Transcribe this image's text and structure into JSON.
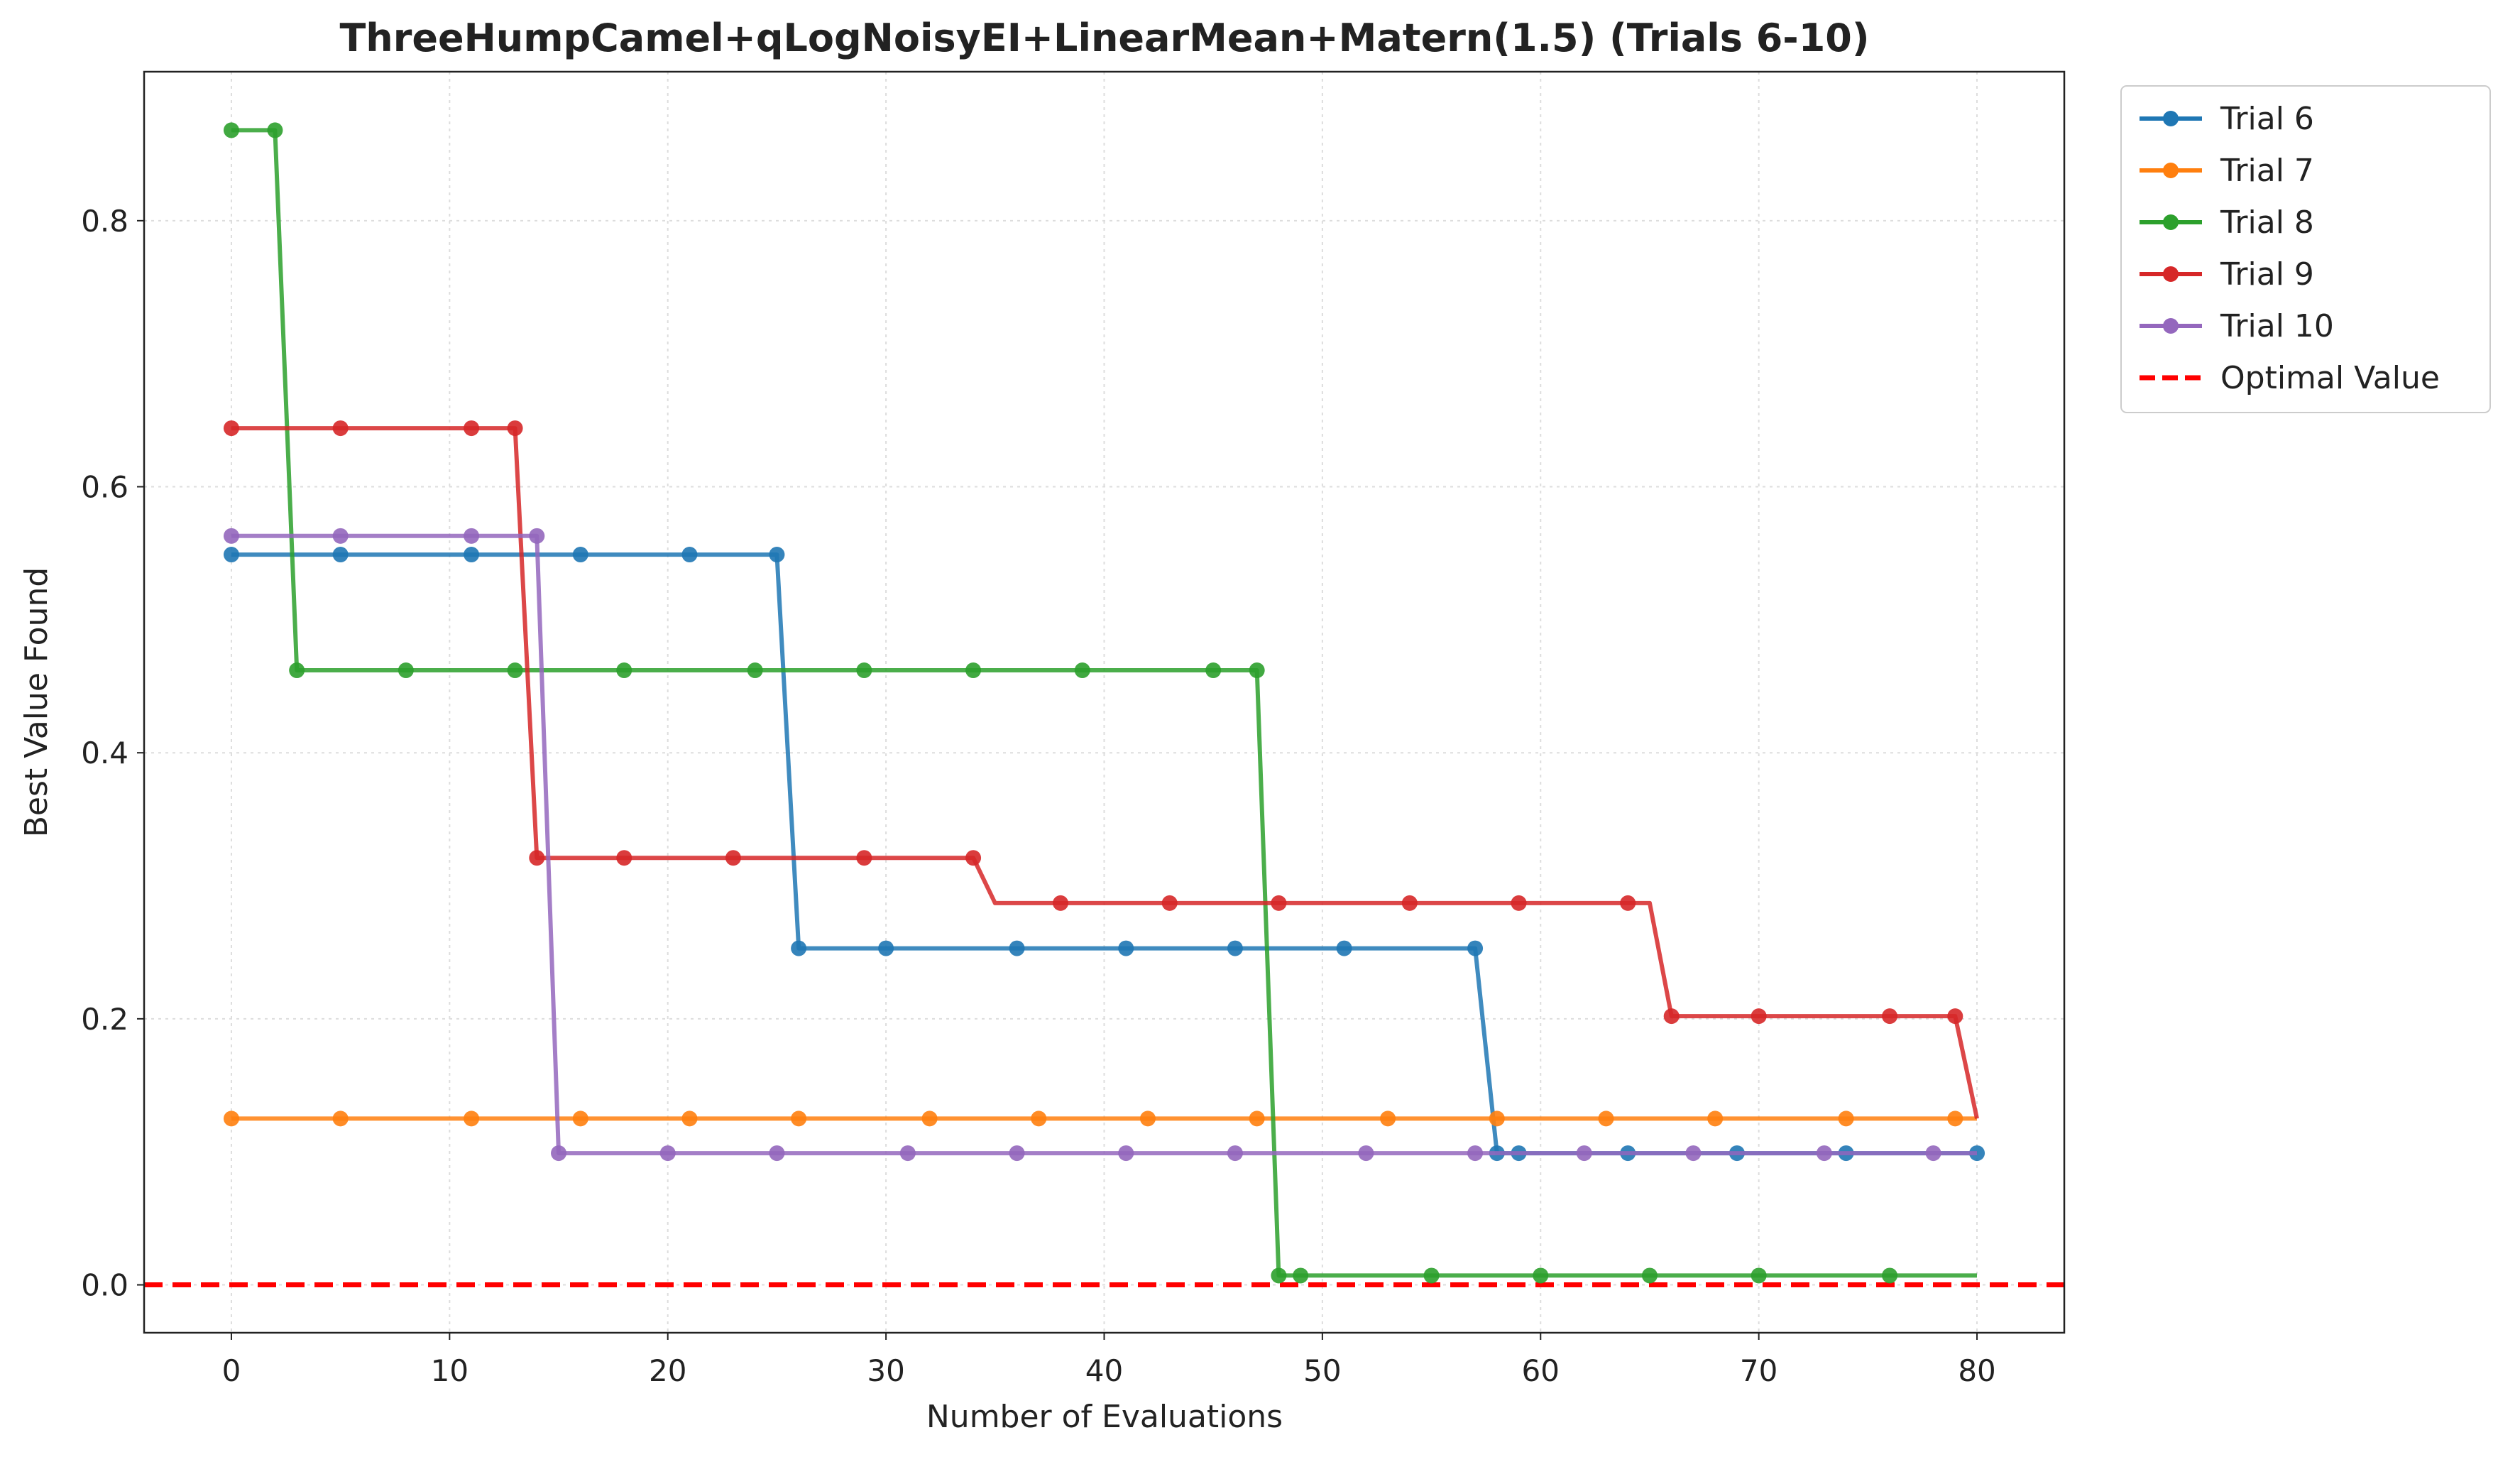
{
  "chart_data": {
    "type": "line",
    "title": "ThreeHumpCamel+qLogNoisyEI+LinearMean+Matern(1.5) (Trials 6-10)",
    "xlabel": "Number of Evaluations",
    "ylabel": "Best Value Found",
    "xlim": [
      -4,
      84
    ],
    "ylim": [
      -0.036,
      0.912
    ],
    "xticks": [
      0,
      10,
      20,
      30,
      40,
      50,
      60,
      70,
      80
    ],
    "yticks": [
      0.0,
      0.2,
      0.4,
      0.6,
      0.8
    ],
    "xtick_labels": [
      "0",
      "10",
      "20",
      "30",
      "40",
      "50",
      "60",
      "70",
      "80"
    ],
    "ytick_labels": [
      "0.0",
      "0.2",
      "0.4",
      "0.6",
      "0.8"
    ],
    "grid": true,
    "legend_position": "outside top-right",
    "series": [
      {
        "name": "Trial 6",
        "color": "#1f77b4",
        "x": [
          0,
          1,
          2,
          3,
          4,
          5,
          6,
          7,
          8,
          9,
          10,
          11,
          12,
          13,
          14,
          15,
          16,
          17,
          18,
          19,
          20,
          21,
          22,
          23,
          24,
          25,
          26,
          27,
          28,
          29,
          30,
          31,
          32,
          33,
          34,
          35,
          36,
          37,
          38,
          39,
          40,
          41,
          42,
          43,
          44,
          45,
          46,
          47,
          48,
          49,
          50,
          51,
          52,
          53,
          54,
          55,
          56,
          57,
          58,
          59,
          60,
          61,
          62,
          63,
          64,
          65,
          66,
          67,
          68,
          69,
          70,
          71,
          72,
          73,
          74,
          75,
          76,
          77,
          78,
          79,
          80
        ],
        "y": [
          0.549,
          0.549,
          0.549,
          0.549,
          0.549,
          0.549,
          0.549,
          0.549,
          0.549,
          0.549,
          0.549,
          0.549,
          0.549,
          0.549,
          0.549,
          0.549,
          0.549,
          0.549,
          0.549,
          0.549,
          0.549,
          0.549,
          0.549,
          0.549,
          0.549,
          0.549,
          0.253,
          0.253,
          0.253,
          0.253,
          0.253,
          0.253,
          0.253,
          0.253,
          0.253,
          0.253,
          0.253,
          0.253,
          0.253,
          0.253,
          0.253,
          0.253,
          0.253,
          0.253,
          0.253,
          0.253,
          0.253,
          0.253,
          0.253,
          0.253,
          0.253,
          0.253,
          0.253,
          0.253,
          0.253,
          0.253,
          0.253,
          0.253,
          0.099,
          0.099,
          0.099,
          0.099,
          0.099,
          0.099,
          0.099,
          0.099,
          0.099,
          0.099,
          0.099,
          0.099,
          0.099,
          0.099,
          0.099,
          0.099,
          0.099,
          0.099,
          0.099,
          0.099,
          0.099,
          0.099,
          0.099
        ],
        "marker_x": [
          0,
          5,
          11,
          16,
          21,
          25,
          26,
          30,
          36,
          41,
          46,
          51,
          57,
          58,
          59,
          64,
          69,
          74,
          80
        ]
      },
      {
        "name": "Trial 7",
        "color": "#ff7f0e",
        "x": [
          0,
          80
        ],
        "y": [
          0.125,
          0.125
        ],
        "marker_x": [
          0,
          5,
          11,
          16,
          21,
          26,
          32,
          37,
          42,
          47,
          53,
          58,
          63,
          68,
          74,
          79
        ]
      },
      {
        "name": "Trial 8",
        "color": "#2ca02c",
        "x": [
          0,
          1,
          2,
          3,
          4,
          5,
          6,
          7,
          8,
          9,
          10,
          11,
          12,
          13,
          14,
          15,
          16,
          17,
          18,
          19,
          20,
          21,
          22,
          23,
          24,
          25,
          26,
          27,
          28,
          29,
          30,
          31,
          32,
          33,
          34,
          35,
          36,
          37,
          38,
          39,
          40,
          41,
          42,
          43,
          44,
          45,
          46,
          47,
          48,
          49,
          50,
          51,
          52,
          53,
          54,
          55,
          56,
          57,
          58,
          59,
          60,
          61,
          62,
          63,
          64,
          65,
          66,
          67,
          68,
          69,
          70,
          71,
          72,
          73,
          74,
          75,
          76,
          77,
          78,
          79,
          80
        ],
        "y": [
          0.868,
          0.868,
          0.868,
          0.462,
          0.462,
          0.462,
          0.462,
          0.462,
          0.462,
          0.462,
          0.462,
          0.462,
          0.462,
          0.462,
          0.462,
          0.462,
          0.462,
          0.462,
          0.462,
          0.462,
          0.462,
          0.462,
          0.462,
          0.462,
          0.462,
          0.462,
          0.462,
          0.462,
          0.462,
          0.462,
          0.462,
          0.462,
          0.462,
          0.462,
          0.462,
          0.462,
          0.462,
          0.462,
          0.462,
          0.462,
          0.462,
          0.462,
          0.462,
          0.462,
          0.462,
          0.462,
          0.462,
          0.462,
          0.007,
          0.007,
          0.007,
          0.007,
          0.007,
          0.007,
          0.007,
          0.007,
          0.007,
          0.007,
          0.007,
          0.007,
          0.007,
          0.007,
          0.007,
          0.007,
          0.007,
          0.007,
          0.007,
          0.007,
          0.007,
          0.007,
          0.007,
          0.007,
          0.007,
          0.007,
          0.007,
          0.007,
          0.007,
          0.007,
          0.007,
          0.007,
          0.007
        ],
        "marker_x": [
          0,
          2,
          3,
          8,
          13,
          18,
          24,
          29,
          34,
          39,
          45,
          47,
          48,
          49,
          55,
          60,
          65,
          70,
          76
        ]
      },
      {
        "name": "Trial 9",
        "color": "#d62728",
        "x": [
          0,
          1,
          2,
          3,
          4,
          5,
          6,
          7,
          8,
          9,
          10,
          11,
          12,
          13,
          14,
          15,
          16,
          17,
          18,
          19,
          20,
          21,
          22,
          23,
          24,
          25,
          26,
          27,
          28,
          29,
          30,
          31,
          32,
          33,
          34,
          35,
          36,
          37,
          38,
          39,
          40,
          41,
          42,
          43,
          44,
          45,
          46,
          47,
          48,
          49,
          50,
          51,
          52,
          53,
          54,
          55,
          56,
          57,
          58,
          59,
          60,
          61,
          62,
          63,
          64,
          65,
          66,
          67,
          68,
          69,
          70,
          71,
          72,
          73,
          74,
          75,
          76,
          77,
          78,
          79,
          80
        ],
        "y": [
          0.644,
          0.644,
          0.644,
          0.644,
          0.644,
          0.644,
          0.644,
          0.644,
          0.644,
          0.644,
          0.644,
          0.644,
          0.644,
          0.644,
          0.321,
          0.321,
          0.321,
          0.321,
          0.321,
          0.321,
          0.321,
          0.321,
          0.321,
          0.321,
          0.321,
          0.321,
          0.321,
          0.321,
          0.321,
          0.321,
          0.321,
          0.321,
          0.321,
          0.321,
          0.321,
          0.287,
          0.287,
          0.287,
          0.287,
          0.287,
          0.287,
          0.287,
          0.287,
          0.287,
          0.287,
          0.287,
          0.287,
          0.287,
          0.287,
          0.287,
          0.287,
          0.287,
          0.287,
          0.287,
          0.287,
          0.287,
          0.287,
          0.287,
          0.287,
          0.287,
          0.287,
          0.287,
          0.287,
          0.287,
          0.287,
          0.287,
          0.202,
          0.202,
          0.202,
          0.202,
          0.202,
          0.202,
          0.202,
          0.202,
          0.202,
          0.202,
          0.202,
          0.202,
          0.202,
          0.202,
          0.125
        ],
        "marker_x": [
          0,
          5,
          11,
          13,
          14,
          18,
          23,
          29,
          34,
          38,
          43,
          48,
          54,
          59,
          64,
          66,
          70,
          76,
          79
        ]
      },
      {
        "name": "Trial 10",
        "color": "#9467bd",
        "x": [
          0,
          1,
          2,
          3,
          4,
          5,
          6,
          7,
          8,
          9,
          10,
          11,
          12,
          13,
          14,
          15,
          16,
          17,
          18,
          19,
          20,
          21,
          22,
          23,
          24,
          25,
          26,
          27,
          28,
          29,
          30,
          31,
          32,
          33,
          34,
          35,
          36,
          37,
          38,
          39,
          40,
          41,
          42,
          43,
          44,
          45,
          46,
          47,
          48,
          49,
          50,
          51,
          52,
          53,
          54,
          55,
          56,
          57,
          58,
          59,
          60,
          61,
          62,
          63,
          64,
          65,
          66,
          67,
          68,
          69,
          70,
          71,
          72,
          73,
          74,
          75,
          76,
          77,
          78,
          79,
          80
        ],
        "y": [
          0.563,
          0.563,
          0.563,
          0.563,
          0.563,
          0.563,
          0.563,
          0.563,
          0.563,
          0.563,
          0.563,
          0.563,
          0.563,
          0.563,
          0.563,
          0.099,
          0.099,
          0.099,
          0.099,
          0.099,
          0.099,
          0.099,
          0.099,
          0.099,
          0.099,
          0.099,
          0.099,
          0.099,
          0.099,
          0.099,
          0.099,
          0.099,
          0.099,
          0.099,
          0.099,
          0.099,
          0.099,
          0.099,
          0.099,
          0.099,
          0.099,
          0.099,
          0.099,
          0.099,
          0.099,
          0.099,
          0.099,
          0.099,
          0.099,
          0.099,
          0.099,
          0.099,
          0.099,
          0.099,
          0.099,
          0.099,
          0.099,
          0.099,
          0.099,
          0.099,
          0.099,
          0.099,
          0.099,
          0.099,
          0.099,
          0.099,
          0.099,
          0.099,
          0.099,
          0.099,
          0.099,
          0.099,
          0.099,
          0.099,
          0.099,
          0.099,
          0.099,
          0.099,
          0.099,
          0.099,
          0.099
        ],
        "marker_x": [
          0,
          5,
          11,
          14,
          15,
          20,
          25,
          31,
          36,
          41,
          46,
          52,
          57,
          62,
          67,
          73,
          78
        ]
      }
    ],
    "reference_line": {
      "name": "Optimal Value",
      "y": 0.0,
      "color": "#ff0000",
      "style": "dashed"
    }
  }
}
